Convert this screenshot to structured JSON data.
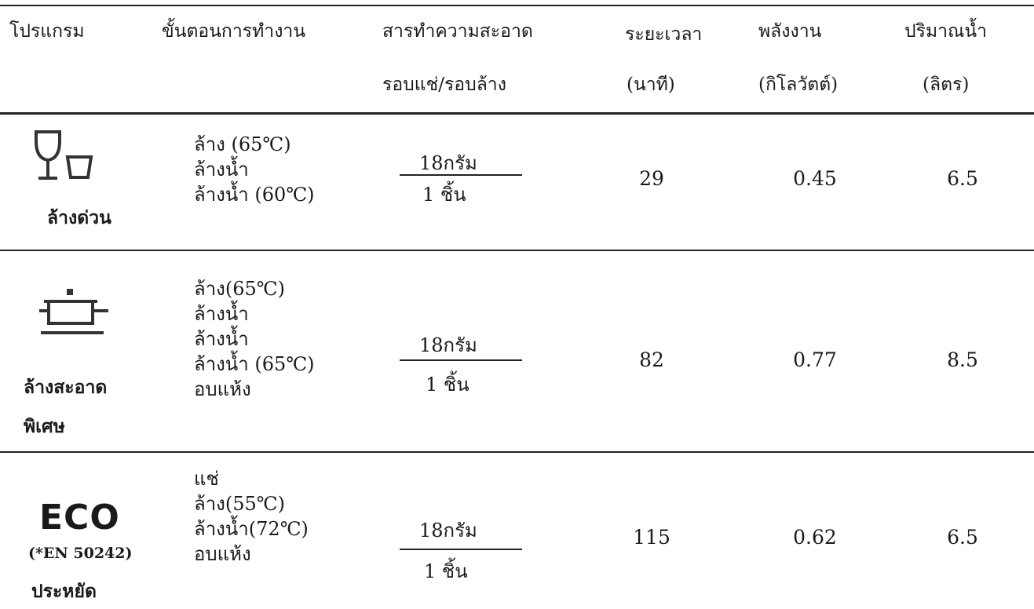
{
  "header": {
    "program": "โปรแกรม",
    "steps": "ขั้นตอนการทำงาน",
    "detergent_line1": "สารทำความสะอาด",
    "detergent_line2": "รอบแช่/รอบล้าง",
    "duration_line1": "ระยะเวลา",
    "duration_line2": "(นาที)",
    "energy_line1": "พลังงาน",
    "energy_line2": "(กิโลวัตต์)",
    "water_line1": "ปริมาณน้ำ",
    "water_line2": "(ลิตร)"
  },
  "rows": [
    {
      "icon": "glass-cup-icon",
      "label_line1": "ล้างด่วน",
      "label_line2": "",
      "steps": [
        "ล้าง (65℃)",
        "ล้างน้ำ",
        "ล้างน้ำ (60℃)"
      ],
      "detergent_top": "18กรัม",
      "detergent_bottom": "1 ชิ้น",
      "duration": "29",
      "energy": "0.45",
      "water": "6.5"
    },
    {
      "icon": "pot-icon",
      "label_line1": "ล้างสะอาด",
      "label_line2": "พิเศษ",
      "steps": [
        "ล้าง(65℃)",
        "ล้างน้ำ",
        "ล้างน้ำ",
        "ล้างน้ำ (65℃)",
        "อบแห้ง"
      ],
      "detergent_top": "18กรัม",
      "detergent_bottom": "1 ชิ้น",
      "duration": "82",
      "energy": "0.77",
      "water": "8.5"
    },
    {
      "icon": "eco-text",
      "eco_text": "ECO",
      "eco_sub": "(*EN 50242)",
      "label_line1": "ประหยัด",
      "label_line2": "",
      "steps": [
        "แช่",
        "ล้าง(55℃)",
        "ล้างน้ำ(72℃)",
        "อบแห้ง"
      ],
      "detergent_top": "18กรัม",
      "detergent_bottom": "1 ชิ้น",
      "duration": "115",
      "energy": "0.62",
      "water": "6.5"
    }
  ]
}
